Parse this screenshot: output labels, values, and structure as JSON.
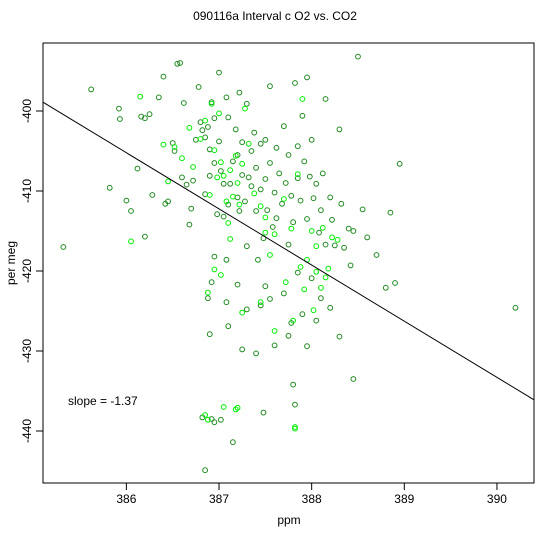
{
  "chart_data": {
    "type": "scatter",
    "title": "090116a   Interval c O2 vs. CO2",
    "xlabel": "ppm",
    "ylabel": "per meg",
    "xlim": [
      385.1,
      390.4
    ],
    "ylim": [
      -446.5,
      -391.5
    ],
    "xticks": [
      386,
      387,
      388,
      389,
      390
    ],
    "yticks": [
      -400,
      -410,
      -420,
      -430,
      -440
    ],
    "annotation": "slope =  -1.37",
    "fit_line": {
      "x": [
        385.1,
        390.4
      ],
      "y": [
        -398.9,
        -436.1
      ]
    },
    "colors": {
      "dark": "#228b22",
      "bright": "#00ee00",
      "line": "#000000",
      "axes": "#000000"
    },
    "series": [
      {
        "color": "#228b22",
        "points": [
          [
            385.32,
            -417.0
          ],
          [
            385.62,
            -397.3
          ],
          [
            385.82,
            -409.6
          ],
          [
            385.92,
            -399.7
          ],
          [
            385.93,
            -401.0
          ],
          [
            386.0,
            -411.2
          ],
          [
            386.05,
            -412.5
          ],
          [
            386.12,
            -407.2
          ],
          [
            386.16,
            -400.7
          ],
          [
            386.2,
            -400.9
          ],
          [
            386.2,
            -415.7
          ],
          [
            386.25,
            -400.4
          ],
          [
            386.28,
            -410.5
          ],
          [
            386.35,
            -398.3
          ],
          [
            386.4,
            -395.7
          ],
          [
            386.42,
            -411.6
          ],
          [
            386.45,
            -411.3
          ],
          [
            386.5,
            -404.0
          ],
          [
            386.52,
            -405.0
          ],
          [
            386.55,
            -394.1
          ],
          [
            386.58,
            -394.0
          ],
          [
            386.6,
            -408.3
          ],
          [
            386.62,
            -399.0
          ],
          [
            386.65,
            -409.2
          ],
          [
            386.68,
            -414.2
          ],
          [
            386.7,
            -412.2
          ],
          [
            386.72,
            -408.7
          ],
          [
            386.75,
            -403.6
          ],
          [
            386.78,
            -397.0
          ],
          [
            386.8,
            -401.4
          ],
          [
            386.82,
            -402.4
          ],
          [
            386.85,
            -403.3
          ],
          [
            386.85,
            -410.4
          ],
          [
            386.88,
            -402.0
          ],
          [
            386.9,
            -404.8
          ],
          [
            386.9,
            -408.1
          ],
          [
            386.92,
            -398.9
          ],
          [
            386.95,
            -400.9
          ],
          [
            386.95,
            -406.5
          ],
          [
            386.98,
            -412.9
          ],
          [
            387.0,
            -395.2
          ],
          [
            387.0,
            -403.8
          ],
          [
            387.02,
            -407.5
          ],
          [
            387.05,
            -409.1
          ],
          [
            387.05,
            -413.2
          ],
          [
            387.08,
            -398.3
          ],
          [
            387.08,
            -418.6
          ],
          [
            387.1,
            -400.8
          ],
          [
            387.1,
            -411.7
          ],
          [
            387.12,
            -409.1
          ],
          [
            387.15,
            -406.3
          ],
          [
            387.18,
            -402.3
          ],
          [
            387.2,
            -405.5
          ],
          [
            387.2,
            -410.8
          ],
          [
            387.22,
            -397.7
          ],
          [
            387.22,
            -412.5
          ],
          [
            387.25,
            -403.9
          ],
          [
            387.25,
            -408.0
          ],
          [
            387.28,
            -411.3
          ],
          [
            387.3,
            -399.1
          ],
          [
            387.3,
            -416.9
          ],
          [
            387.32,
            -408.3
          ],
          [
            387.35,
            -405.0
          ],
          [
            387.35,
            -409.4
          ],
          [
            387.38,
            -402.7
          ],
          [
            387.4,
            -407.1
          ],
          [
            387.4,
            -412.5
          ],
          [
            387.42,
            -418.6
          ],
          [
            387.45,
            -404.1
          ],
          [
            387.45,
            -409.8
          ],
          [
            387.48,
            -415.9
          ],
          [
            387.5,
            -403.6
          ],
          [
            387.5,
            -408.5
          ],
          [
            387.52,
            -412.4
          ],
          [
            387.55,
            -396.9
          ],
          [
            387.55,
            -406.5
          ],
          [
            387.58,
            -414.5
          ],
          [
            387.6,
            -410.2
          ],
          [
            387.62,
            -404.6
          ],
          [
            387.62,
            -413.4
          ],
          [
            387.65,
            -407.8
          ],
          [
            387.68,
            -411.6
          ],
          [
            387.7,
            -401.9
          ],
          [
            387.72,
            -409.0
          ],
          [
            387.75,
            -405.5
          ],
          [
            387.75,
            -416.7
          ],
          [
            387.78,
            -410.6
          ],
          [
            387.8,
            -413.9
          ],
          [
            387.82,
            -396.5
          ],
          [
            387.85,
            -404.4
          ],
          [
            387.85,
            -408.4
          ],
          [
            387.88,
            -411.2
          ],
          [
            387.9,
            -400.6
          ],
          [
            387.92,
            -406.3
          ],
          [
            387.95,
            -395.8
          ],
          [
            387.95,
            -413.5
          ],
          [
            387.98,
            -408.2
          ],
          [
            388.0,
            -403.6
          ],
          [
            388.02,
            -410.9
          ],
          [
            388.05,
            -409.1
          ],
          [
            388.08,
            -415.2
          ],
          [
            388.1,
            -412.4
          ],
          [
            388.12,
            -407.8
          ],
          [
            388.15,
            -416.7
          ],
          [
            388.15,
            -398.5
          ],
          [
            388.2,
            -410.8
          ],
          [
            388.22,
            -413.6
          ],
          [
            388.25,
            -416.8
          ],
          [
            388.3,
            -402.3
          ],
          [
            388.32,
            -411.6
          ],
          [
            388.35,
            -417.1
          ],
          [
            388.4,
            -414.7
          ],
          [
            388.42,
            -419.3
          ],
          [
            388.45,
            -415.0
          ],
          [
            388.5,
            -393.2
          ],
          [
            388.55,
            -412.3
          ],
          [
            388.6,
            -415.8
          ],
          [
            388.7,
            -418.0
          ],
          [
            388.85,
            -412.7
          ],
          [
            388.8,
            -422.1
          ],
          [
            388.9,
            -421.5
          ],
          [
            388.95,
            -406.6
          ],
          [
            390.2,
            -424.6
          ],
          [
            386.88,
            -423.4
          ],
          [
            386.9,
            -427.9
          ],
          [
            386.92,
            -421.4
          ],
          [
            386.95,
            -418.2
          ],
          [
            387.08,
            -423.9
          ],
          [
            387.1,
            -426.9
          ],
          [
            387.2,
            -421.7
          ],
          [
            387.25,
            -429.8
          ],
          [
            387.3,
            -424.8
          ],
          [
            387.4,
            -430.3
          ],
          [
            387.45,
            -424.3
          ],
          [
            387.5,
            -421.9
          ],
          [
            387.55,
            -423.5
          ],
          [
            387.6,
            -429.3
          ],
          [
            387.7,
            -422.8
          ],
          [
            387.75,
            -428.1
          ],
          [
            387.78,
            -426.5
          ],
          [
            387.85,
            -420.2
          ],
          [
            387.9,
            -425.4
          ],
          [
            387.95,
            -429.4
          ],
          [
            388.0,
            -420.9
          ],
          [
            388.05,
            -426.2
          ],
          [
            388.1,
            -423.4
          ],
          [
            388.2,
            -424.6
          ],
          [
            388.3,
            -428.2
          ],
          [
            388.45,
            -433.5
          ],
          [
            386.82,
            -438.3
          ],
          [
            386.85,
            -444.9
          ],
          [
            386.92,
            -438.5
          ],
          [
            387.02,
            -438.6
          ],
          [
            387.15,
            -441.4
          ],
          [
            387.48,
            -437.7
          ],
          [
            387.8,
            -434.2
          ],
          [
            387.82,
            -436.7
          ],
          [
            386.95,
            -438.9
          ]
        ]
      },
      {
        "color": "#00ee00",
        "points": [
          [
            386.05,
            -416.3
          ],
          [
            386.15,
            -398.2
          ],
          [
            386.4,
            -404.2
          ],
          [
            386.45,
            -408.8
          ],
          [
            386.52,
            -404.5
          ],
          [
            386.6,
            -405.9
          ],
          [
            386.68,
            -402.1
          ],
          [
            386.72,
            -407.0
          ],
          [
            386.8,
            -403.5
          ],
          [
            386.85,
            -401.2
          ],
          [
            386.9,
            -410.5
          ],
          [
            386.92,
            -399.1
          ],
          [
            386.95,
            -404.9
          ],
          [
            386.98,
            -408.3
          ],
          [
            387.0,
            -400.3
          ],
          [
            387.02,
            -406.4
          ],
          [
            387.05,
            -408.1
          ],
          [
            387.08,
            -411.3
          ],
          [
            387.1,
            -414.0
          ],
          [
            387.12,
            -407.4
          ],
          [
            387.15,
            -410.7
          ],
          [
            387.18,
            -405.6
          ],
          [
            387.2,
            -409.0
          ],
          [
            387.22,
            -411.7
          ],
          [
            387.25,
            -406.6
          ],
          [
            387.28,
            -399.7
          ],
          [
            387.32,
            -404.1
          ],
          [
            387.38,
            -410.3
          ],
          [
            387.45,
            -411.9
          ],
          [
            387.5,
            -415.2
          ],
          [
            387.55,
            -418.0
          ],
          [
            387.6,
            -415.4
          ],
          [
            387.7,
            -411.0
          ],
          [
            387.78,
            -414.7
          ],
          [
            387.85,
            -407.9
          ],
          [
            387.9,
            -398.5
          ],
          [
            387.95,
            -418.6
          ],
          [
            388.0,
            -415.0
          ],
          [
            388.05,
            -416.9
          ],
          [
            388.12,
            -414.6
          ],
          [
            388.18,
            -419.7
          ],
          [
            388.22,
            -415.8
          ],
          [
            387.5,
            -413.3
          ],
          [
            388.05,
            -420.1
          ],
          [
            386.88,
            -422.7
          ],
          [
            386.95,
            -419.8
          ],
          [
            387.02,
            -420.5
          ],
          [
            387.12,
            -416.0
          ],
          [
            387.25,
            -425.2
          ],
          [
            387.45,
            -423.9
          ],
          [
            387.6,
            -427.5
          ],
          [
            387.72,
            -421.4
          ],
          [
            387.8,
            -426.2
          ],
          [
            387.88,
            -419.5
          ],
          [
            387.92,
            -422.3
          ],
          [
            388.02,
            -424.9
          ],
          [
            388.1,
            -422.1
          ],
          [
            388.15,
            -420.8
          ],
          [
            388.28,
            -416.1
          ],
          [
            386.85,
            -438.0
          ],
          [
            386.88,
            -438.6
          ],
          [
            387.05,
            -437.0
          ],
          [
            387.18,
            -437.3
          ],
          [
            387.2,
            -437.1
          ],
          [
            387.82,
            -439.7
          ],
          [
            387.82,
            -439.5
          ]
        ]
      }
    ]
  }
}
